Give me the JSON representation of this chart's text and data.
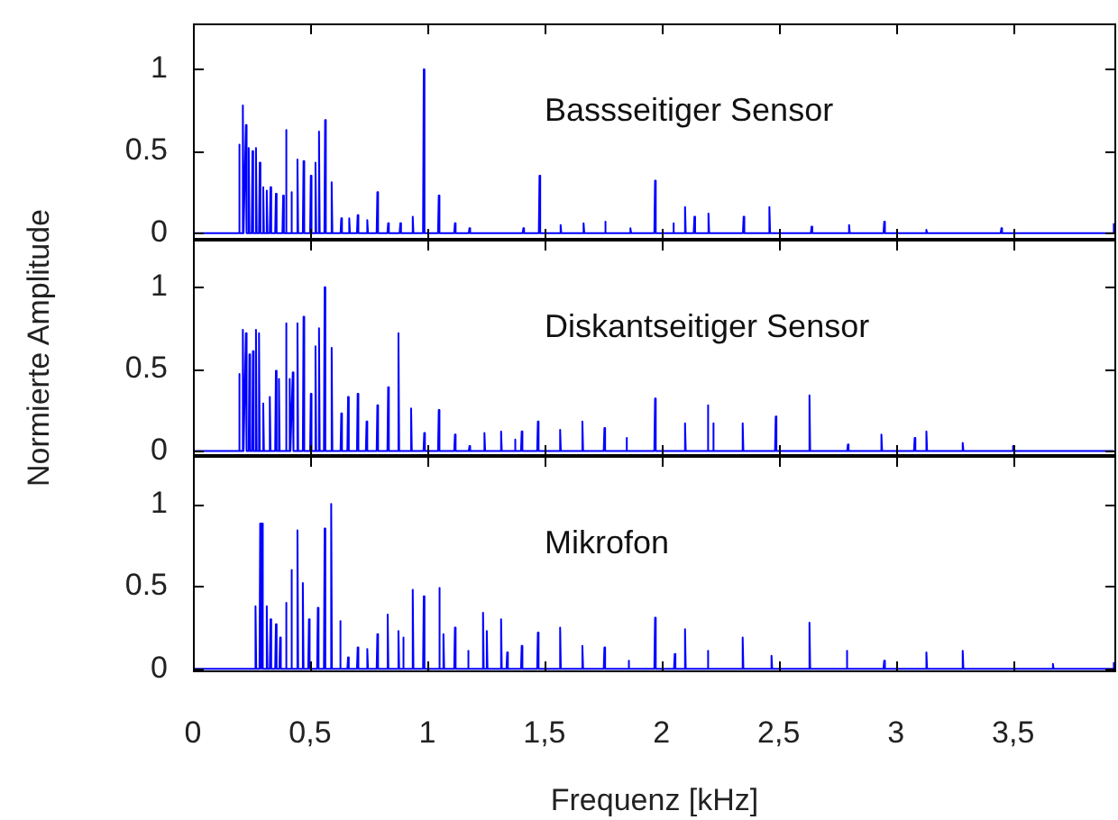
{
  "chart_data": [
    {
      "type": "line",
      "title": "Bassseitiger Sensor",
      "xlim": [
        0,
        3.94
      ],
      "ylim": [
        -0.04,
        1.28
      ],
      "xticks": [
        {
          "value": 0,
          "label": null
        },
        {
          "value": 0.5,
          "label": null
        },
        {
          "value": 1,
          "label": null
        },
        {
          "value": 1.5,
          "label": null
        },
        {
          "value": 2,
          "label": null
        },
        {
          "value": 2.5,
          "label": null
        },
        {
          "value": 3,
          "label": null
        },
        {
          "value": 3.5,
          "label": null
        }
      ],
      "yticks": [
        0,
        0.5,
        1
      ],
      "tick_labels": "y",
      "marker": "none",
      "series": [
        {
          "color": "#0000ff",
          "x": [
            0,
            0.194,
            0.197,
            0.2,
            0.21,
            0.213,
            0.216,
            0.223,
            0.226,
            0.229,
            0.235,
            0.238,
            0.241,
            0.251,
            0.254,
            0.257,
            0.266,
            0.269,
            0.272,
            0.282,
            0.285,
            0.288,
            0.297,
            0.3,
            0.303,
            0.312,
            0.315,
            0.318,
            0.328,
            0.331,
            0.334,
            0.351,
            0.354,
            0.357,
            0.382,
            0.385,
            0.388,
            0.394,
            0.397,
            0.4,
            0.417,
            0.42,
            0.423,
            0.443,
            0.446,
            0.449,
            0.469,
            0.472,
            0.475,
            0.5,
            0.503,
            0.506,
            0.52,
            0.523,
            0.526,
            0.535,
            0.538,
            0.541,
            0.561,
            0.564,
            0.567,
            0.589,
            0.592,
            0.595,
            0.63,
            0.633,
            0.636,
            0.664,
            0.667,
            0.67,
            0.7,
            0.703,
            0.706,
            0.741,
            0.744,
            0.747,
            0.784,
            0.787,
            0.79,
            0.83,
            0.833,
            0.836,
            0.882,
            0.885,
            0.888,
            0.935,
            0.938,
            0.941,
            0.982,
            0.985,
            0.988,
            1.046,
            1.049,
            1.052,
            1.115,
            1.118,
            1.121,
            1.177,
            1.18,
            1.183,
            1.407,
            1.41,
            1.413,
            1.476,
            1.479,
            1.482,
            1.566,
            1.569,
            1.572,
            1.664,
            1.667,
            1.67,
            1.756,
            1.759,
            1.762,
            1.864,
            1.867,
            1.87,
            1.969,
            1.972,
            1.975,
            2.047,
            2.05,
            2.053,
            2.097,
            2.1,
            2.103,
            2.137,
            2.14,
            2.143,
            2.197,
            2.2,
            2.203,
            2.347,
            2.35,
            2.353,
            2.457,
            2.46,
            2.463,
            2.637,
            2.64,
            2.643,
            2.797,
            2.8,
            2.803,
            2.947,
            2.95,
            2.953,
            3.127,
            3.13,
            3.133,
            3.447,
            3.45,
            3.453,
            3.927,
            3.93
          ],
          "values": [
            0,
            0,
            0.54,
            0,
            0,
            0.78,
            0,
            0,
            0.66,
            0,
            0,
            0.52,
            0,
            0,
            0.5,
            0,
            0,
            0.52,
            0,
            0,
            0.43,
            0,
            0,
            0.28,
            0,
            0,
            0.26,
            0,
            0,
            0.28,
            0,
            0,
            0.24,
            0,
            0,
            0.23,
            0,
            0,
            0.63,
            0,
            0,
            0.25,
            0,
            0,
            0.45,
            0,
            0,
            0.44,
            0,
            0,
            0.35,
            0,
            0,
            0.43,
            0,
            0,
            0.62,
            0,
            0,
            0.69,
            0,
            0,
            0.31,
            0,
            0,
            0.09,
            0,
            0,
            0.09,
            0,
            0,
            0.11,
            0,
            0,
            0.08,
            0,
            0,
            0.25,
            0,
            0,
            0.06,
            0,
            0,
            0.06,
            0,
            0,
            0.1,
            0,
            0,
            1,
            0,
            0,
            0.23,
            0,
            0,
            0.06,
            0,
            0,
            0.03,
            0,
            0,
            0.03,
            0,
            0,
            0.35,
            0,
            0,
            0.05,
            0,
            0,
            0.06,
            0,
            0,
            0.07,
            0,
            0,
            0.03,
            0,
            0,
            0.32,
            0,
            0,
            0.06,
            0,
            0,
            0.16,
            0,
            0,
            0.1,
            0,
            0,
            0.12,
            0,
            0,
            0.1,
            0,
            0,
            0.16,
            0,
            0,
            0.04,
            0,
            0,
            0.05,
            0,
            0,
            0.07,
            0,
            0,
            0.02,
            0,
            0,
            0.03,
            0,
            0,
            0.06
          ]
        }
      ]
    },
    {
      "type": "line",
      "title": "Diskantseitiger Sensor",
      "ylabel": "Normierte Amplitude",
      "xlim": [
        0,
        3.94
      ],
      "ylim": [
        -0.03,
        1.29
      ],
      "xticks": [
        {
          "value": 0,
          "label": null
        },
        {
          "value": 0.5,
          "label": null
        },
        {
          "value": 1,
          "label": null
        },
        {
          "value": 1.5,
          "label": null
        },
        {
          "value": 2,
          "label": null
        },
        {
          "value": 2.5,
          "label": null
        },
        {
          "value": 3,
          "label": null
        },
        {
          "value": 3.5,
          "label": null
        }
      ],
      "yticks": [
        0,
        0.5,
        1
      ],
      "tick_labels": "y",
      "marker": "none",
      "series": [
        {
          "color": "#0000ff",
          "x": [
            0,
            0.194,
            0.197,
            0.2,
            0.21,
            0.213,
            0.216,
            0.223,
            0.226,
            0.229,
            0.238,
            0.241,
            0.244,
            0.253,
            0.256,
            0.259,
            0.266,
            0.269,
            0.272,
            0.279,
            0.282,
            0.285,
            0.297,
            0.3,
            0.303,
            0.325,
            0.328,
            0.331,
            0.351,
            0.354,
            0.357,
            0.364,
            0.367,
            0.37,
            0.394,
            0.397,
            0.4,
            0.41,
            0.413,
            0.416,
            0.423,
            0.426,
            0.429,
            0.443,
            0.446,
            0.449,
            0.469,
            0.472,
            0.475,
            0.5,
            0.503,
            0.506,
            0.52,
            0.523,
            0.526,
            0.535,
            0.538,
            0.541,
            0.559,
            0.562,
            0.565,
            0.589,
            0.592,
            0.595,
            0.63,
            0.633,
            0.636,
            0.659,
            0.662,
            0.665,
            0.7,
            0.703,
            0.706,
            0.738,
            0.741,
            0.744,
            0.784,
            0.787,
            0.79,
            0.83,
            0.833,
            0.836,
            0.874,
            0.877,
            0.88,
            0.928,
            0.931,
            0.934,
            0.984,
            0.987,
            0.99,
            1.046,
            1.049,
            1.052,
            1.115,
            1.118,
            1.121,
            1.177,
            1.18,
            1.183,
            1.241,
            1.244,
            1.247,
            1.312,
            1.315,
            1.318,
            1.371,
            1.374,
            1.377,
            1.4,
            1.403,
            1.406,
            1.469,
            1.472,
            1.475,
            1.564,
            1.567,
            1.57,
            1.659,
            1.662,
            1.665,
            1.753,
            1.756,
            1.759,
            1.847,
            1.85,
            1.853,
            1.969,
            1.972,
            1.975,
            2.097,
            2.1,
            2.103,
            2.194,
            2.197,
            2.2,
            2.217,
            2.22,
            2.223,
            2.343,
            2.346,
            2.349,
            2.484,
            2.487,
            2.49,
            2.628,
            2.631,
            2.634,
            2.792,
            2.795,
            2.798,
            2.935,
            2.938,
            2.941,
            3.077,
            3.08,
            3.083,
            3.127,
            3.13,
            3.133,
            3.282,
            3.285,
            3.288,
            3.497,
            3.5,
            3.503,
            3.93
          ],
          "values": [
            0,
            0,
            0.47,
            0,
            0,
            0.74,
            0,
            0,
            0.72,
            0,
            0,
            0.59,
            0,
            0,
            0.61,
            0,
            0,
            0.74,
            0,
            0,
            0.72,
            0,
            0,
            0.29,
            0,
            0,
            0.33,
            0,
            0,
            0.49,
            0,
            0,
            0.44,
            0,
            0,
            0.78,
            0,
            0,
            0.44,
            0,
            0,
            0.48,
            0,
            0,
            0.78,
            0,
            0,
            0.82,
            0,
            0,
            0.35,
            0,
            0,
            0.64,
            0,
            0,
            0.75,
            0,
            0,
            1,
            0,
            0,
            0.63,
            0,
            0,
            0.23,
            0,
            0,
            0.33,
            0,
            0,
            0.35,
            0,
            0,
            0.18,
            0,
            0,
            0.28,
            0,
            0,
            0.39,
            0,
            0,
            0.72,
            0,
            0,
            0.26,
            0,
            0,
            0.11,
            0,
            0,
            0.25,
            0,
            0,
            0.1,
            0,
            0,
            0.03,
            0,
            0,
            0.11,
            0,
            0,
            0.12,
            0,
            0,
            0.07,
            0,
            0,
            0.12,
            0,
            0,
            0.18,
            0,
            0,
            0.13,
            0,
            0,
            0.18,
            0,
            0,
            0.14,
            0,
            0,
            0.08,
            0,
            0,
            0.32,
            0,
            0,
            0.17,
            0,
            0,
            0.28,
            0,
            0,
            0.17,
            0,
            0,
            0.17,
            0,
            0,
            0.21,
            0,
            0,
            0.34,
            0,
            0,
            0.04,
            0,
            0,
            0.1,
            0,
            0,
            0.08,
            0,
            0,
            0.12,
            0,
            0,
            0.05,
            0,
            0,
            0.03,
            0,
            0
          ]
        }
      ]
    },
    {
      "type": "line",
      "title": "Mikrofon",
      "xlabel": "Frequenz [kHz]",
      "xlim": [
        0,
        3.94
      ],
      "ylim": [
        -0.02,
        1.29
      ],
      "xticks": [
        0,
        {
          "value": 0.5,
          "label": "0,5"
        },
        1,
        {
          "value": 1.5,
          "label": "1,5"
        },
        2,
        {
          "value": 2.5,
          "label": "2,5"
        },
        3,
        {
          "value": 3.5,
          "label": "3,5"
        }
      ],
      "yticks": [
        0,
        0.5,
        1
      ],
      "marker": "none",
      "series": [
        {
          "color": "#0000ff",
          "x": [
            0,
            0.264,
            0.267,
            0.27,
            0.284,
            0.287,
            0.29,
            0.292,
            0.295,
            0.298,
            0.312,
            0.315,
            0.318,
            0.328,
            0.331,
            0.334,
            0.351,
            0.354,
            0.357,
            0.369,
            0.372,
            0.375,
            0.394,
            0.397,
            0.4,
            0.417,
            0.42,
            0.423,
            0.443,
            0.446,
            0.449,
            0.466,
            0.469,
            0.472,
            0.492,
            0.495,
            0.498,
            0.53,
            0.533,
            0.536,
            0.559,
            0.562,
            0.565,
            0.587,
            0.59,
            0.593,
            0.625,
            0.628,
            0.631,
            0.659,
            0.662,
            0.665,
            0.7,
            0.703,
            0.706,
            0.741,
            0.744,
            0.747,
            0.784,
            0.787,
            0.79,
            0.828,
            0.831,
            0.834,
            0.874,
            0.877,
            0.88,
            0.894,
            0.897,
            0.9,
            0.935,
            0.938,
            0.941,
            0.982,
            0.985,
            0.988,
            1.048,
            1.051,
            1.054,
            1.066,
            1.069,
            1.072,
            1.115,
            1.118,
            1.121,
            1.171,
            1.174,
            1.177,
            1.235,
            1.238,
            1.241,
            1.251,
            1.254,
            1.257,
            1.312,
            1.315,
            1.318,
            1.338,
            1.341,
            1.344,
            1.4,
            1.403,
            1.406,
            1.469,
            1.472,
            1.475,
            1.564,
            1.567,
            1.57,
            1.659,
            1.662,
            1.665,
            1.753,
            1.756,
            1.759,
            1.856,
            1.859,
            1.862,
            1.969,
            1.972,
            1.975,
            2.053,
            2.056,
            2.059,
            2.097,
            2.1,
            2.103,
            2.194,
            2.197,
            2.2,
            2.343,
            2.346,
            2.349,
            2.466,
            2.469,
            2.472,
            2.628,
            2.631,
            2.634,
            2.787,
            2.79,
            2.793,
            2.947,
            2.95,
            2.953,
            3.127,
            3.13,
            3.133,
            3.282,
            3.285,
            3.288,
            3.667,
            3.67,
            3.673,
            3.927,
            3.93
          ],
          "values": [
            0,
            0,
            0.38,
            0,
            0,
            0.88,
            0,
            0,
            0.88,
            0,
            0,
            0.38,
            0,
            0,
            0.3,
            0,
            0,
            0.27,
            0,
            0,
            0.19,
            0,
            0,
            0.4,
            0,
            0,
            0.6,
            0,
            0,
            0.84,
            0,
            0,
            0.52,
            0,
            0,
            0.3,
            0,
            0,
            0.37,
            0,
            0,
            0.85,
            0,
            0,
            1,
            0,
            0,
            0.29,
            0,
            0,
            0.07,
            0,
            0,
            0.13,
            0,
            0,
            0.12,
            0,
            0,
            0.21,
            0,
            0,
            0.33,
            0,
            0,
            0.23,
            0,
            0,
            0.19,
            0,
            0,
            0.48,
            0,
            0,
            0.44,
            0,
            0,
            0.49,
            0,
            0,
            0.21,
            0,
            0,
            0.25,
            0,
            0,
            0.11,
            0,
            0,
            0.34,
            0,
            0,
            0.23,
            0,
            0,
            0.3,
            0,
            0,
            0.1,
            0,
            0,
            0.14,
            0,
            0,
            0.22,
            0,
            0,
            0.25,
            0,
            0,
            0.14,
            0,
            0,
            0.13,
            0,
            0,
            0.05,
            0,
            0,
            0.31,
            0,
            0,
            0.09,
            0,
            0,
            0.24,
            0,
            0,
            0.11,
            0,
            0,
            0.19,
            0,
            0,
            0.08,
            0,
            0,
            0.28,
            0,
            0,
            0.11,
            0,
            0,
            0.05,
            0,
            0,
            0.1,
            0,
            0,
            0.11,
            0,
            0,
            0.03,
            0,
            0,
            0.04
          ]
        }
      ]
    }
  ]
}
